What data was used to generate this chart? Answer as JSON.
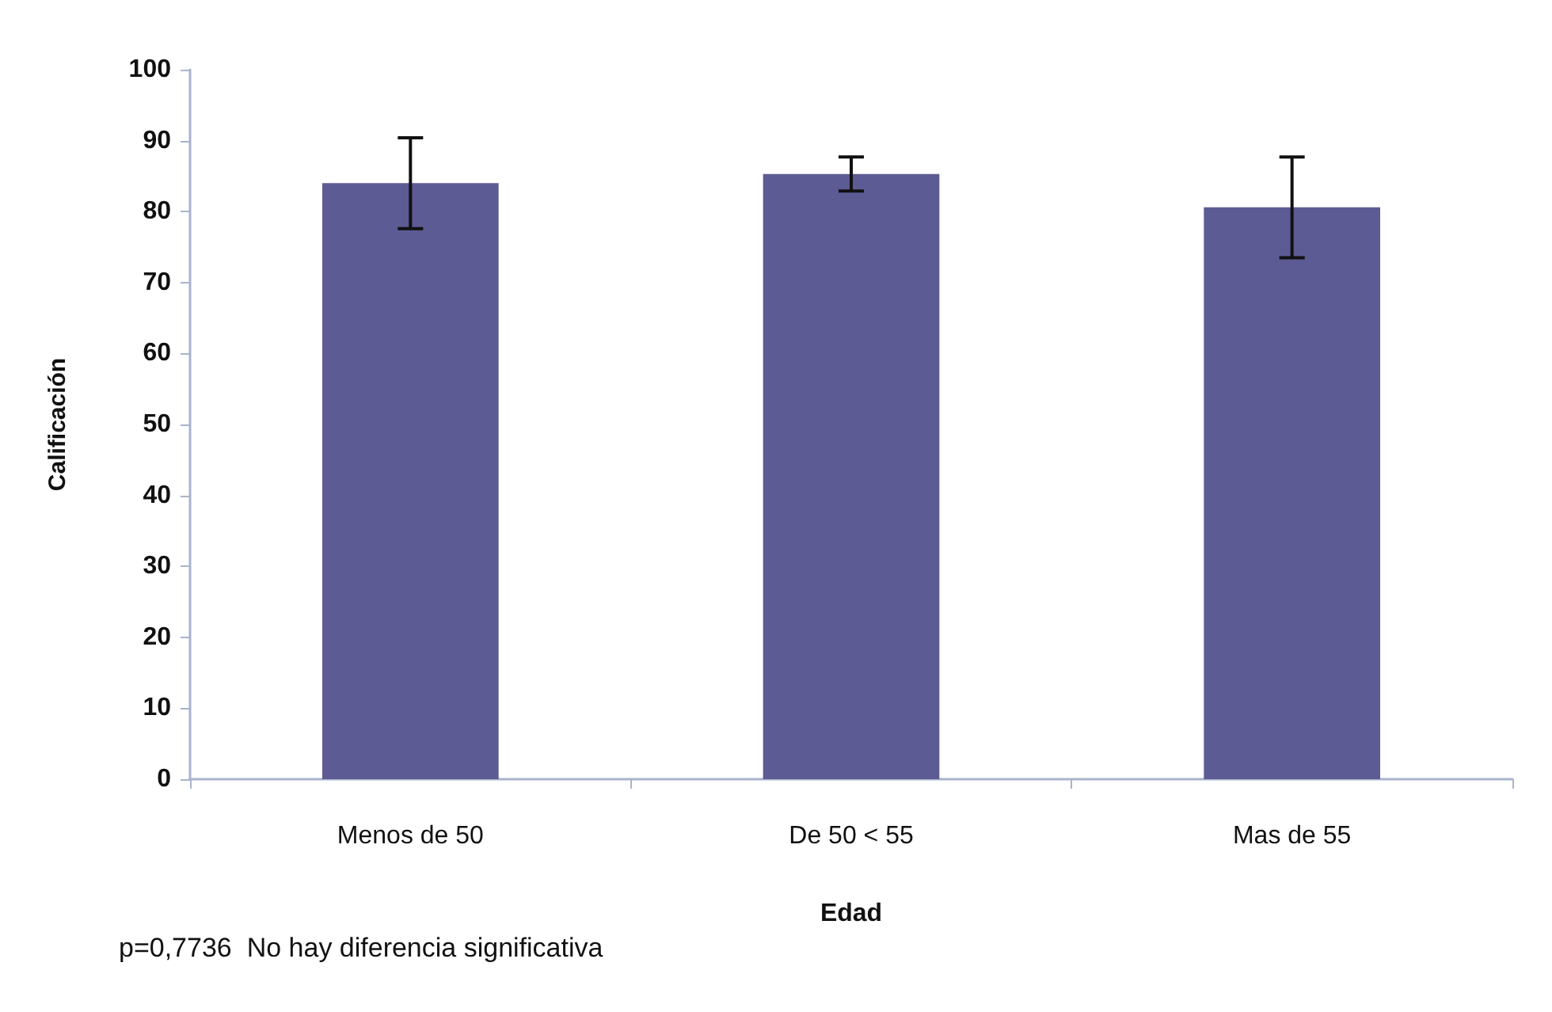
{
  "chart_data": {
    "type": "bar",
    "xlabel": "Edad",
    "ylabel": "Calificación",
    "categories": [
      "Menos de 50",
      "De 50 < 55",
      "Mas de 55"
    ],
    "values": [
      84,
      85.3,
      80.6
    ],
    "errors": [
      6.4,
      2.4,
      7.1
    ],
    "color": "#5c5b93",
    "ylim": [
      0,
      100
    ],
    "yticks": [
      0,
      10,
      20,
      30,
      40,
      50,
      60,
      70,
      80,
      90,
      100
    ],
    "grid": false,
    "annotations": [
      "p=0,7736  No hay diferencia significativa"
    ]
  }
}
